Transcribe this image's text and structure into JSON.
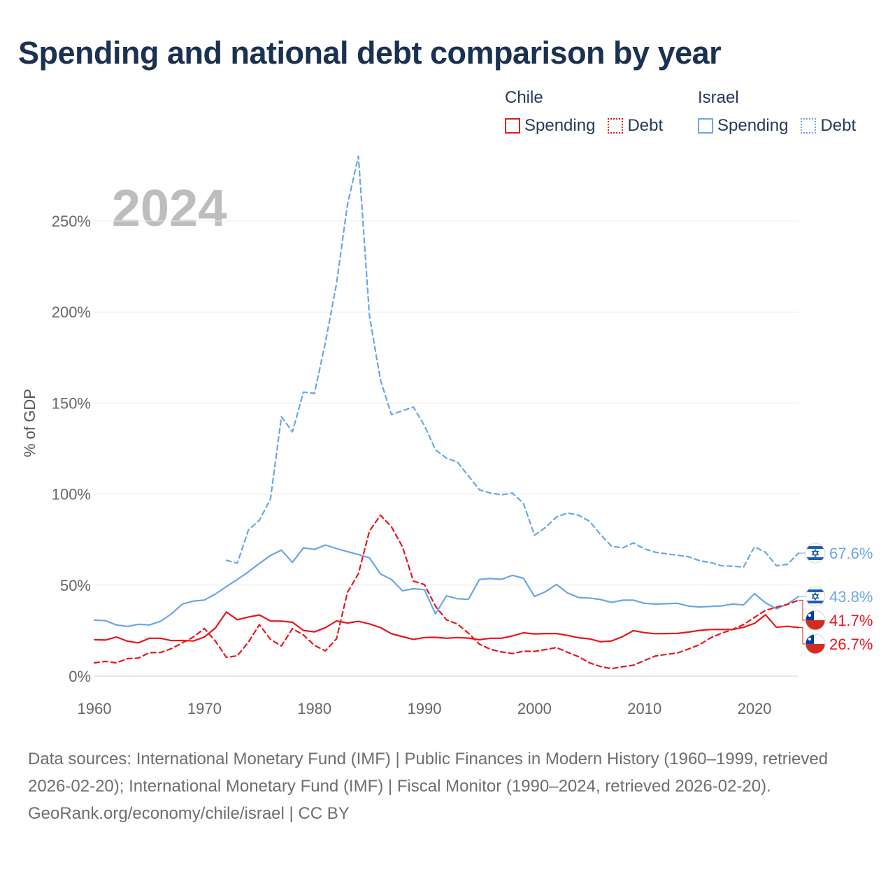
{
  "chart_data": {
    "type": "line",
    "title": "Spending and national debt comparison by year",
    "year_watermark": "2024",
    "ylabel": "% of GDP",
    "xlabel": "",
    "xlim": [
      1960,
      2024
    ],
    "ylim": [
      0,
      265
    ],
    "y_ticks": [
      0,
      50,
      100,
      150,
      200,
      250
    ],
    "y_tick_labels": [
      "0%",
      "50%",
      "100%",
      "150%",
      "200%",
      "250%"
    ],
    "x_ticks": [
      1960,
      1970,
      1980,
      1990,
      2000,
      2010,
      2020
    ],
    "x_tick_labels": [
      "1960",
      "1970",
      "1980",
      "1990",
      "2000",
      "2010",
      "2020"
    ],
    "legend": {
      "groups": [
        {
          "name": "Chile",
          "items": [
            {
              "label": "Spending",
              "style": "solid",
              "color": "#e8161b"
            },
            {
              "label": "Debt",
              "style": "dotted",
              "color": "#e8161b"
            }
          ]
        },
        {
          "name": "Israel",
          "items": [
            {
              "label": "Spending",
              "style": "solid",
              "color": "#6aa6e6"
            },
            {
              "label": "Debt",
              "style": "dotted",
              "color": "#6aa6e6"
            }
          ]
        }
      ]
    },
    "series": [
      {
        "name": "Chile Spending",
        "country": "Chile",
        "measure": "Spending",
        "color": "#e8161b",
        "dashed": false,
        "start_year": 1960,
        "values": [
          20,
          19.8,
          21.5,
          19.2,
          18.3,
          20.8,
          20.8,
          19.5,
          19.6,
          19.3,
          21.5,
          26.5,
          35.2,
          31,
          32.5,
          33.6,
          30.3,
          30.2,
          29.6,
          25.1,
          24.3,
          26.6,
          30.3,
          29.2,
          30.1,
          28.7,
          26.7,
          23.3,
          21.7,
          20.2,
          21.2,
          21.3,
          20.8,
          21.2,
          20.9,
          20,
          20.8,
          20.8,
          22.1,
          23.8,
          23.2,
          23.4,
          23.4,
          22.4,
          21.1,
          20.5,
          18.9,
          19.3,
          21.7,
          25,
          23.9,
          23.3,
          23.4,
          23.5,
          24.2,
          25.1,
          25.6,
          25.6,
          25.6,
          26.8,
          29,
          33.7,
          26.8,
          27.4,
          26.7
        ]
      },
      {
        "name": "Chile Debt",
        "country": "Chile",
        "measure": "Debt",
        "color": "#e8161b",
        "dashed": true,
        "start_year": 1960,
        "values": [
          7.3,
          8.1,
          7.3,
          9.6,
          9.9,
          12.9,
          13,
          15.1,
          18.3,
          21.5,
          26.2,
          19.2,
          10.3,
          11.2,
          18.7,
          28.3,
          20.2,
          16.6,
          26.1,
          22.6,
          16.9,
          13.9,
          20.5,
          46,
          56.3,
          79.7,
          88.4,
          82,
          71.1,
          52.2,
          50.3,
          38.4,
          30.9,
          28.6,
          23.6,
          17.5,
          14.8,
          13.3,
          12.4,
          13.7,
          13.6,
          14.6,
          15.7,
          13.1,
          10.7,
          7.3,
          5.3,
          4.1,
          5.2,
          6,
          8.6,
          11.1,
          12,
          12.7,
          14.9,
          17.3,
          21,
          23.6,
          25.6,
          28.3,
          32.3,
          36.1,
          37.9,
          39.4,
          41.7
        ]
      },
      {
        "name": "Israel Spending",
        "country": "Israel",
        "measure": "Spending",
        "color": "#6aa6e6",
        "dashed": false,
        "start_year": 1960,
        "values": [
          30.8,
          30.5,
          28.1,
          27.3,
          28.5,
          28.1,
          30.1,
          34.2,
          39.6,
          41.2,
          41.8,
          45.1,
          49.2,
          53.1,
          57.3,
          61.9,
          66.3,
          69.2,
          62.5,
          70.5,
          69.6,
          72,
          70.1,
          68.4,
          66.8,
          65,
          56.1,
          53.1,
          46.9,
          48,
          47.5,
          34.2,
          44.1,
          42.5,
          42.2,
          53.1,
          53.6,
          53.2,
          55.4,
          53.8,
          43.8,
          46.4,
          50.4,
          45.7,
          43.2,
          42.9,
          42.1,
          40.5,
          41.7,
          41.7,
          40,
          39.6,
          39.8,
          40,
          38.5,
          38,
          38.3,
          38.6,
          39.6,
          39.1,
          45.3,
          40.3,
          37,
          39.6,
          43.8
        ]
      },
      {
        "name": "Israel Debt",
        "country": "Israel",
        "measure": "Debt",
        "color": "#6aa6e6",
        "dashed": true,
        "start_year": 1972,
        "values": [
          63.6,
          62.1,
          80.3,
          85.6,
          97.3,
          142.5,
          134.2,
          156,
          155.3,
          183.3,
          215.5,
          258.9,
          285.6,
          197.8,
          162.7,
          143.6,
          145.8,
          147.8,
          137.7,
          124.3,
          119.7,
          117.6,
          109.9,
          102.3,
          100.6,
          99.6,
          100.6,
          94.9,
          77.4,
          81.6,
          87.4,
          89.6,
          88.4,
          85.1,
          77.9,
          71.4,
          70.4,
          73.2,
          69.9,
          68,
          67.2,
          66.4,
          65.6,
          63.4,
          62.4,
          60.6,
          60.4,
          59.9,
          71.1,
          68,
          60.7,
          61.4,
          67.6
        ]
      }
    ],
    "end_labels": [
      {
        "country": "Israel",
        "measure": "Debt",
        "text": "67.6%",
        "color": "#6aa6e6"
      },
      {
        "country": "Israel",
        "measure": "Spending",
        "text": "43.8%",
        "color": "#6aa6e6"
      },
      {
        "country": "Chile",
        "measure": "Debt",
        "text": "41.7%",
        "color": "#e8161b"
      },
      {
        "country": "Chile",
        "measure": "Spending",
        "text": "26.7%",
        "color": "#e8161b"
      }
    ]
  },
  "footer": {
    "sources": "Data sources: International Monetary Fund (IMF) | Public Finances in Modern History (1960–1999, retrieved 2026-02-20); International Monetary Fund (IMF) | Fiscal Monitor (1990–2024, retrieved 2026-02-20).",
    "credit": "GeoRank.org/economy/chile/israel | CC BY"
  }
}
